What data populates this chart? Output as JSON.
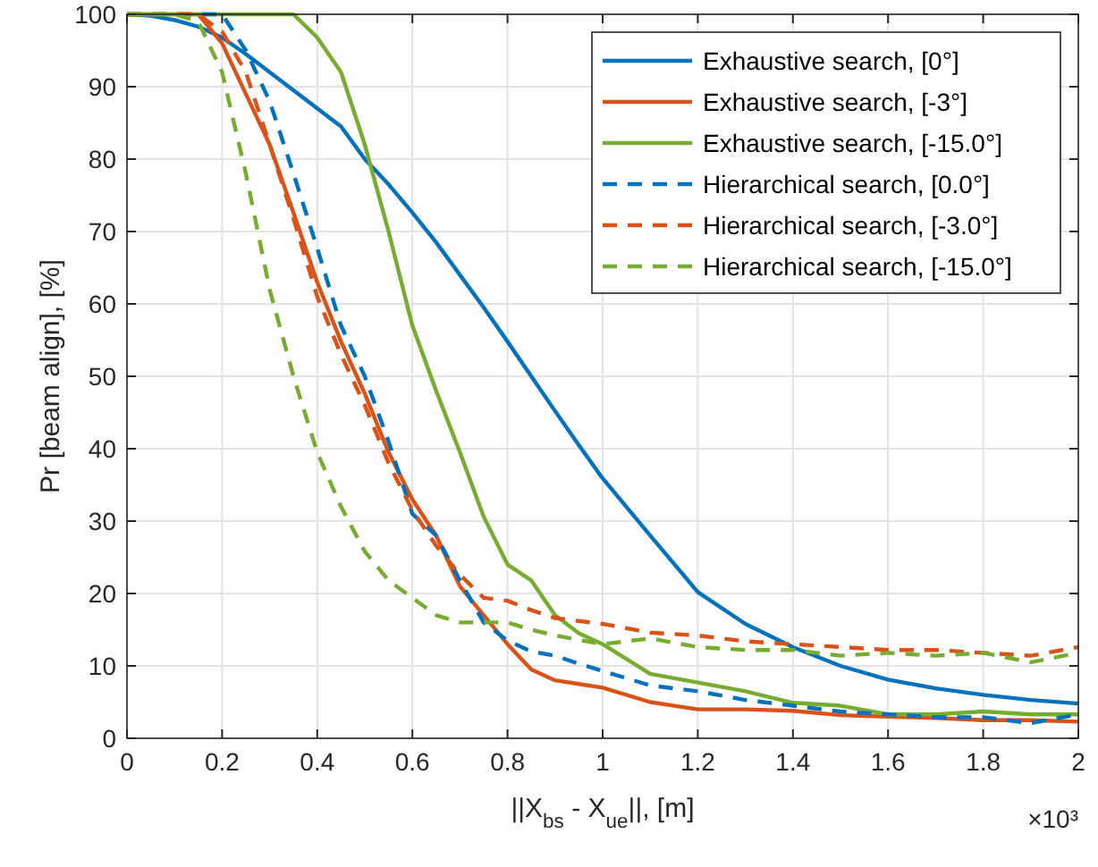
{
  "chart_data": {
    "type": "line",
    "xlabel": "||X$_{bs}$ - X$_{ue}$||, [m]",
    "ylabel": "Pr [beam align], [%]",
    "x": [
      0,
      0.05,
      0.1,
      0.15,
      0.2,
      0.25,
      0.3,
      0.35,
      0.4,
      0.45,
      0.5,
      0.55,
      0.6,
      0.65,
      0.7,
      0.75,
      0.8,
      0.85,
      0.9,
      0.95,
      1.0,
      1.1,
      1.2,
      1.3,
      1.4,
      1.5,
      1.6,
      1.7,
      1.8,
      1.9,
      2.0
    ],
    "series": [
      {
        "name": "Exhaustive search, [0°]",
        "color": "#0072bd",
        "line_style": "solid",
        "values": [
          100,
          99.8,
          99.2,
          98.3,
          96.8,
          94.5,
          92,
          89.5,
          87,
          84.5,
          80,
          76.5,
          72.6,
          68.5,
          64,
          59.5,
          54.8,
          50,
          45.2,
          40.5,
          35.9,
          28,
          20.2,
          15.8,
          12.6,
          10,
          8.1,
          6.9,
          6,
          5.3,
          4.8
        ]
      },
      {
        "name": "Exhaustive search, [-3°]",
        "color": "#d95319",
        "line_style": "solid",
        "values": [
          100,
          100,
          100,
          100,
          96,
          89,
          82,
          72.6,
          63,
          54.8,
          47.6,
          39.5,
          33,
          28,
          21,
          17,
          13,
          9.5,
          8,
          7.5,
          7,
          5,
          4,
          4,
          3.8,
          3.2,
          3,
          2.8,
          2.5,
          2.5,
          2.3
        ]
      },
      {
        "name": "Exhaustive search, [-15.0°]",
        "color": "#77ac30",
        "line_style": "solid",
        "values": [
          100,
          100,
          100,
          100,
          100,
          100,
          100,
          100,
          96.8,
          92,
          82,
          70,
          57,
          48,
          39.5,
          30.6,
          24,
          21.8,
          17,
          14.5,
          13,
          8.9,
          7.7,
          6.5,
          4.9,
          4.5,
          3.3,
          3.3,
          3.7,
          3.3,
          3.3
        ]
      },
      {
        "name": "Hierarchical search, [0.0°]",
        "color": "#0072bd",
        "line_style": "dashed",
        "values": [
          100,
          100,
          100,
          100,
          100,
          95,
          88,
          78,
          67.7,
          57,
          50,
          41,
          31,
          28,
          21.8,
          16,
          13.5,
          12,
          11.4,
          10.3,
          9.3,
          7.3,
          6.5,
          5.3,
          4.5,
          3.7,
          3.3,
          2.9,
          2.9,
          2.1,
          3.3
        ]
      },
      {
        "name": "Hierarchical search, [-3.0°]",
        "color": "#d95319",
        "line_style": "dashed",
        "values": [
          100,
          100,
          100,
          100,
          97.6,
          92,
          82,
          71.8,
          61,
          53,
          46,
          38,
          31.5,
          26.6,
          22.6,
          19.4,
          19,
          17.7,
          16.6,
          16.2,
          15.8,
          14.6,
          14.2,
          13.4,
          13,
          12.6,
          12.2,
          12.2,
          11.8,
          11.4,
          12.6
        ]
      },
      {
        "name": "Hierarchical search, [-15.0°]",
        "color": "#77ac30",
        "line_style": "dashed",
        "values": [
          100,
          100,
          100,
          99,
          92,
          78,
          62,
          50,
          39.5,
          32,
          25.8,
          21.8,
          19.4,
          17,
          16,
          16,
          16,
          15,
          14.2,
          13.6,
          13,
          13.8,
          12.6,
          12.2,
          12.2,
          11.4,
          11.8,
          11.4,
          11.8,
          10.5,
          11.8
        ]
      }
    ],
    "xlim": [
      0,
      2
    ],
    "xticks": [
      0,
      0.2,
      0.4,
      0.6,
      0.8,
      1,
      1.2,
      1.4,
      1.6,
      1.8,
      2
    ],
    "ylim": [
      0,
      100
    ],
    "yticks": [
      0,
      10,
      20,
      30,
      40,
      50,
      60,
      70,
      80,
      90,
      100
    ],
    "grid": true,
    "legend": "top right",
    "marker": "none",
    "annotations": [
      "×10³"
    ]
  }
}
